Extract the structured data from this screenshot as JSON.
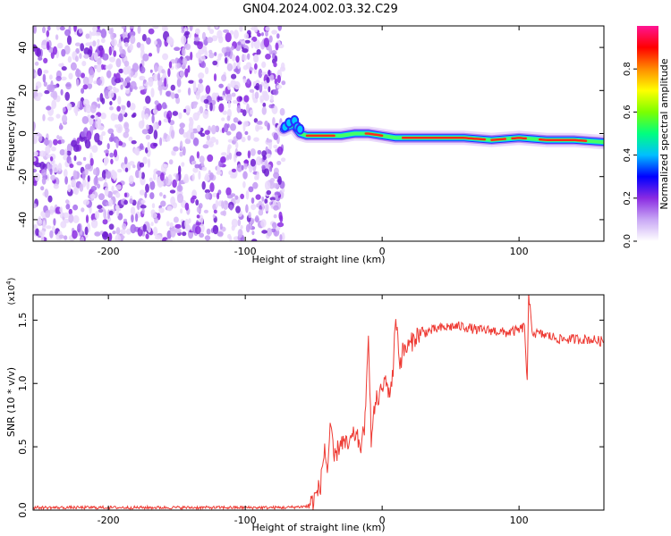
{
  "title": "GN04.2024.002.03.32.C29",
  "chart_data": [
    {
      "type": "heatmap",
      "name": "spectrogram",
      "xlabel": "Height of straight line (km)",
      "ylabel": "Frequency (Hz)",
      "xlim": [
        -255,
        162
      ],
      "ylim": [
        -50,
        50
      ],
      "xticks": [
        -200,
        -100,
        0,
        100
      ],
      "yticks": [
        -40,
        -20,
        0,
        20,
        40
      ],
      "noise_region_x": [
        -255,
        -72
      ],
      "signal_track": {
        "x": [
          -72,
          -65,
          -60,
          -55,
          -40,
          -30,
          -20,
          -10,
          0,
          10,
          20,
          40,
          60,
          80,
          100,
          120,
          140,
          162
        ],
        "frequency_hz": [
          2,
          4,
          0,
          -1,
          -1,
          -1,
          0,
          0,
          -1,
          -2,
          -2,
          -2,
          -2,
          -3,
          -2,
          -3,
          -3,
          -4
        ]
      },
      "colorbar": {
        "label": "Normalized spectral amplitude",
        "range": [
          0,
          1
        ],
        "ticks": [
          "0.0",
          "0.2",
          "0.4",
          "0.6",
          "0.8"
        ],
        "colors": [
          "#ffffff",
          "#c9a8f5",
          "#8a2be2",
          "#0000ff",
          "#00bfff",
          "#00ff7f",
          "#7cff00",
          "#ffff00",
          "#ff8c00",
          "#ff0000",
          "#ff1493"
        ]
      }
    },
    {
      "type": "line",
      "name": "snr",
      "xlabel": "Height of straight line (km)",
      "ylabel": "SNR (10 * v/v)",
      "scale_note": "(x10",
      "scale_exp": "4",
      "scale_close": ")",
      "xlim": [
        -255,
        162
      ],
      "ylim": [
        0,
        1.7
      ],
      "xticks": [
        -200,
        -100,
        0,
        100
      ],
      "yticks": [
        "0.0",
        "0.5",
        "1.0",
        "1.5"
      ],
      "line_color": "#ee3b34",
      "series": [
        {
          "x": [
            -255,
            -200,
            -150,
            -100,
            -70,
            -55,
            -50,
            -45,
            -42,
            -40,
            -38,
            -35,
            -30,
            -25,
            -20,
            -15,
            -12,
            -10,
            -8,
            -5,
            -2,
            0,
            3,
            5,
            8,
            10,
            13,
            15,
            20,
            25,
            30,
            40,
            50,
            60,
            70,
            80,
            90,
            100,
            104,
            106,
            107,
            110,
            120,
            130,
            140,
            150,
            162
          ],
          "y": [
            0.02,
            0.02,
            0.02,
            0.02,
            0.02,
            0.03,
            0.08,
            0.2,
            0.5,
            0.3,
            0.65,
            0.4,
            0.55,
            0.5,
            0.6,
            0.5,
            0.75,
            1.45,
            0.55,
            0.85,
            0.9,
            0.95,
            1.05,
            0.9,
            1.1,
            1.55,
            1.15,
            1.25,
            1.3,
            1.38,
            1.4,
            1.43,
            1.45,
            1.45,
            1.42,
            1.42,
            1.4,
            1.42,
            1.45,
            1.0,
            1.68,
            1.4,
            1.38,
            1.35,
            1.35,
            1.35,
            1.33
          ]
        }
      ]
    }
  ]
}
